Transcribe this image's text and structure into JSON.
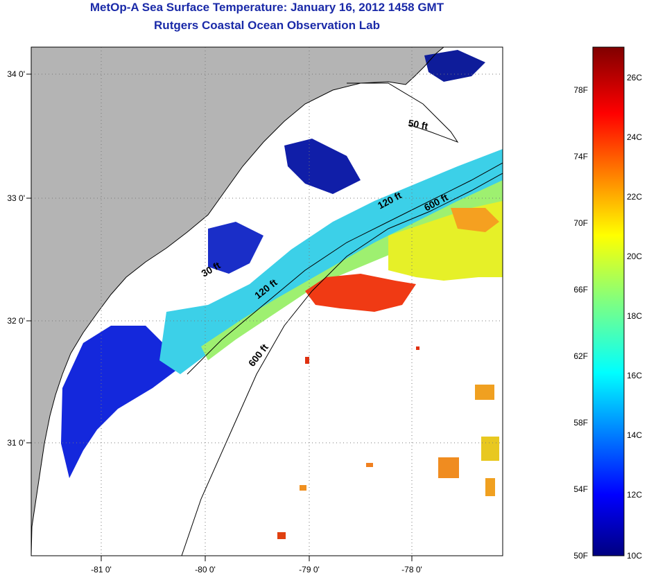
{
  "header": {
    "title": "MetOp-A Sea Surface Temperature:  January 16, 2012 1458 GMT",
    "subtitle": "Rutgers Coastal Ocean Observation Lab"
  },
  "map": {
    "lat_ticks": [
      "34 0'",
      "33 0'",
      "32 0'",
      "31 0'"
    ],
    "lon_ticks": [
      "-81 0'",
      "-80 0'",
      "-79 0'",
      "-78 0'"
    ],
    "depth_labels": [
      "50 ft",
      "120 ft",
      "600 ft",
      "30 ft",
      "120 ft",
      "600 ft"
    ],
    "colors": {
      "land": "#b4b4b4",
      "ocean_nodata": "#ffffff",
      "coast_line": "#000000",
      "grid": "#777777"
    }
  },
  "colorbar": {
    "fahrenheit_labels": [
      "78F",
      "74F",
      "70F",
      "66F",
      "62F",
      "58F",
      "54F",
      "50F"
    ],
    "celsius_labels": [
      "26C",
      "24C",
      "22C",
      "20C",
      "18C",
      "16C",
      "14C",
      "12C",
      "10C"
    ],
    "range_c": [
      10,
      27
    ],
    "colors": [
      "#000080",
      "#0000ff",
      "#0080ff",
      "#00ffff",
      "#80ff80",
      "#ffff00",
      "#ff8000",
      "#ff0000",
      "#800000"
    ]
  }
}
